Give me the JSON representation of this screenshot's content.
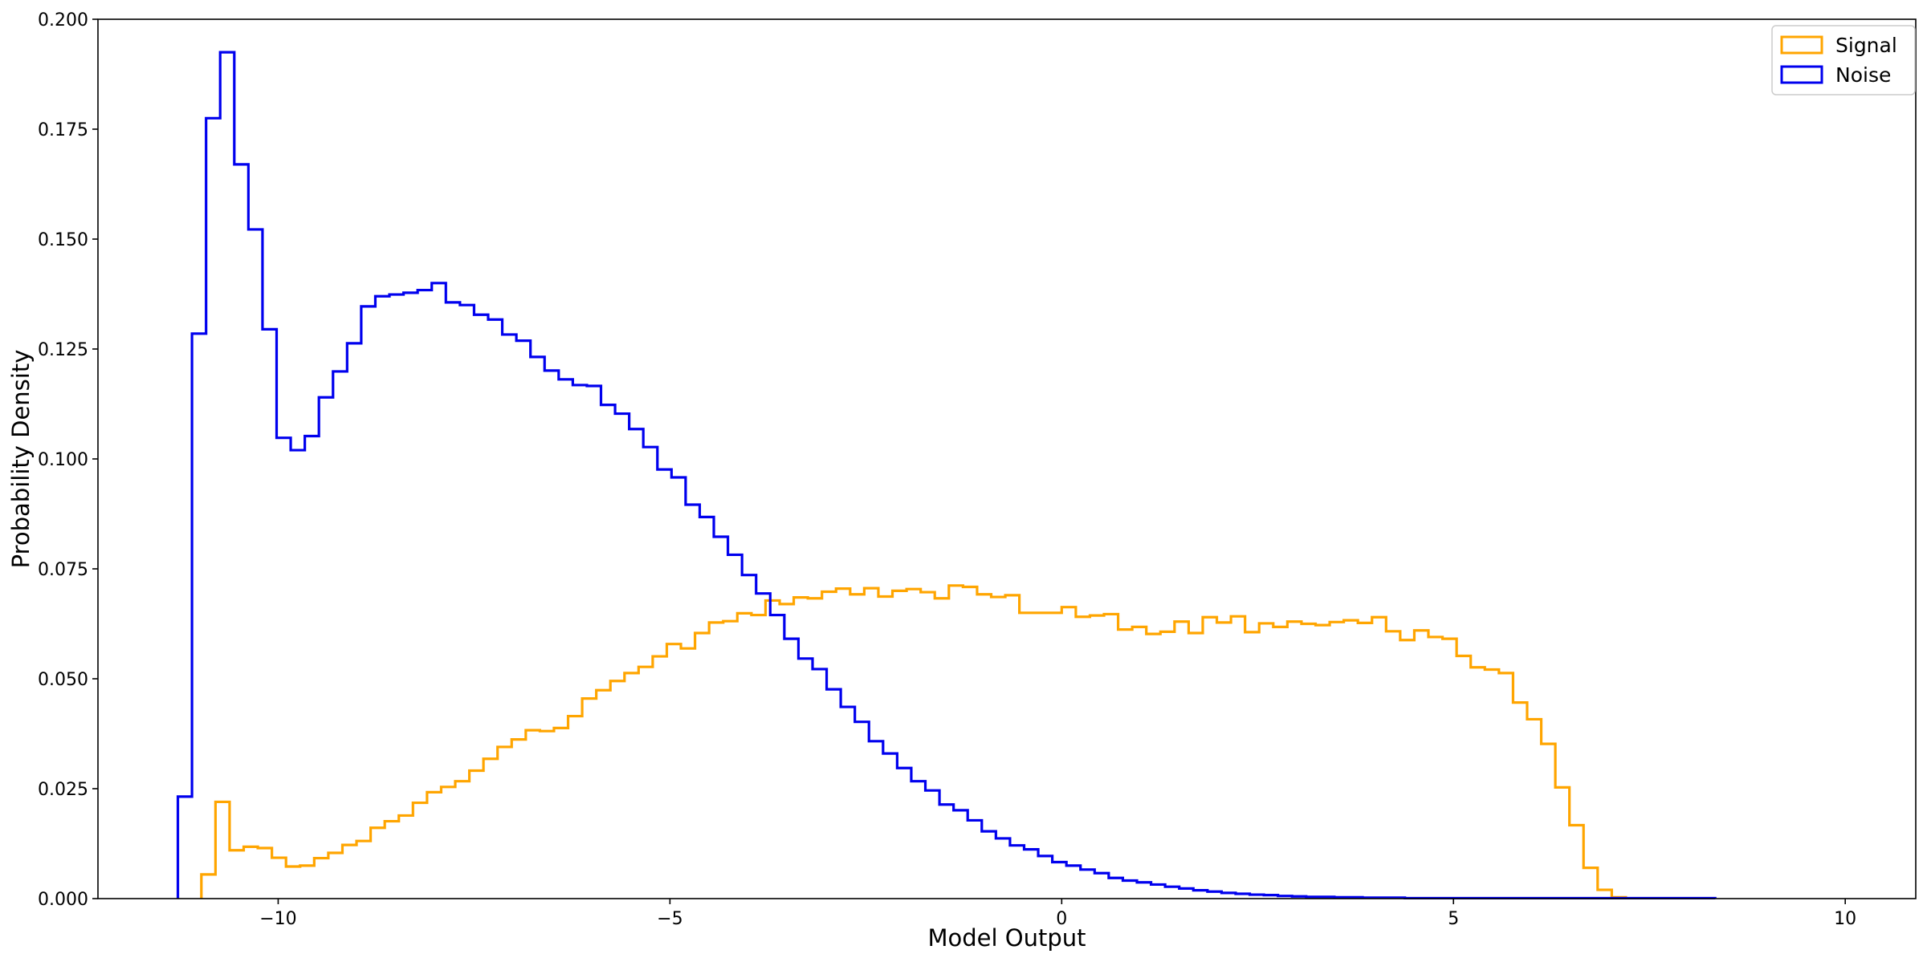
{
  "chart_data": {
    "type": "histogram",
    "title": "",
    "xlabel": "Model Output",
    "ylabel": "Probability Density",
    "xlim": [
      -12.3,
      10.9
    ],
    "ylim": [
      0,
      0.2
    ],
    "xticks": [
      -10,
      -5,
      0,
      5,
      10
    ],
    "xtick_labels": [
      "−10",
      "−5",
      "0",
      "5",
      "10"
    ],
    "yticks": [
      0.0,
      0.025,
      0.05,
      0.075,
      0.1,
      0.125,
      0.15,
      0.175,
      0.2
    ],
    "ytick_labels": [
      "0.000",
      "0.025",
      "0.050",
      "0.075",
      "0.100",
      "0.125",
      "0.150",
      "0.175",
      "0.200"
    ],
    "grid": false,
    "legend_position": "top-right",
    "bin_width": 0.18,
    "series": [
      {
        "name": "Signal",
        "color": "#FFA500",
        "x_start": -10.98,
        "values": [
          0.0055,
          0.022,
          0.011,
          0.0118,
          0.0115,
          0.0093,
          0.0073,
          0.0075,
          0.0092,
          0.0104,
          0.0122,
          0.0131,
          0.0161,
          0.0176,
          0.0189,
          0.0218,
          0.0242,
          0.0254,
          0.0267,
          0.0291,
          0.0318,
          0.0345,
          0.0362,
          0.0383,
          0.0381,
          0.0388,
          0.0415,
          0.0455,
          0.0474,
          0.0495,
          0.0513,
          0.0527,
          0.0551,
          0.0579,
          0.0569,
          0.0604,
          0.0628,
          0.0631,
          0.0649,
          0.0645,
          0.0678,
          0.067,
          0.0685,
          0.0683,
          0.0698,
          0.0705,
          0.0692,
          0.0706,
          0.0687,
          0.07,
          0.0704,
          0.0697,
          0.0683,
          0.0712,
          0.0709,
          0.0692,
          0.0686,
          0.069,
          0.065,
          0.065,
          0.065,
          0.0663,
          0.0641,
          0.0644,
          0.0647,
          0.0612,
          0.0618,
          0.0602,
          0.0607,
          0.063,
          0.0604,
          0.064,
          0.0628,
          0.0642,
          0.0606,
          0.0626,
          0.0618,
          0.063,
          0.0625,
          0.0622,
          0.0629,
          0.0633,
          0.0627,
          0.064,
          0.0608,
          0.0588,
          0.061,
          0.0595,
          0.0591,
          0.0552,
          0.0526,
          0.0521,
          0.0513,
          0.0446,
          0.0408,
          0.0352,
          0.0253,
          0.0167,
          0.007,
          0.002,
          0.0003
        ]
      },
      {
        "name": "Noise",
        "color": "#0000EE",
        "x_start": -11.28,
        "values": [
          0.0232,
          0.1285,
          0.1775,
          0.1925,
          0.167,
          0.1522,
          0.1295,
          0.1048,
          0.102,
          0.1052,
          0.114,
          0.1199,
          0.1263,
          0.1347,
          0.137,
          0.1374,
          0.1378,
          0.1384,
          0.14,
          0.1356,
          0.135,
          0.1328,
          0.1317,
          0.1283,
          0.1269,
          0.1232,
          0.1201,
          0.1181,
          0.1168,
          0.1166,
          0.1123,
          0.1103,
          0.1068,
          0.1027,
          0.0976,
          0.0958,
          0.0896,
          0.0868,
          0.0823,
          0.0782,
          0.0736,
          0.0694,
          0.0645,
          0.0591,
          0.0546,
          0.0522,
          0.0476,
          0.0436,
          0.0402,
          0.0358,
          0.033,
          0.0297,
          0.0267,
          0.0246,
          0.0214,
          0.0201,
          0.0178,
          0.0153,
          0.0137,
          0.0121,
          0.0112,
          0.0097,
          0.0083,
          0.0075,
          0.0066,
          0.0058,
          0.0047,
          0.0041,
          0.0037,
          0.0032,
          0.0027,
          0.0023,
          0.0019,
          0.0016,
          0.0013,
          0.0011,
          0.0009,
          0.0008,
          0.0006,
          0.0005,
          0.0004,
          0.0004,
          0.0003,
          0.0003,
          0.0002,
          0.0002,
          0.0002,
          0.0001,
          0.0001,
          0.0001,
          0.0001,
          0.0001,
          0.0001,
          0.0001,
          0.0001,
          0.0001,
          0.0001,
          0.0001,
          0.0001,
          0.0001,
          0.0001,
          0.0001,
          0.0001,
          0.0001,
          0.0001,
          0.0001,
          0.0001,
          0.0001,
          0.0001
        ]
      }
    ]
  }
}
